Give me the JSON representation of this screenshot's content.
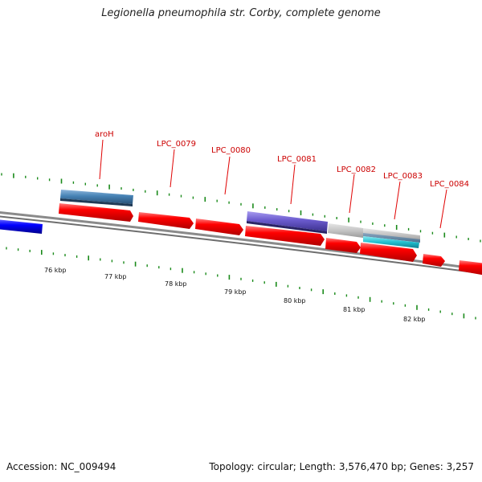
{
  "title": "Legionella pneumophila str. Corby, complete genome",
  "footer": {
    "accession": "Accession: NC_009494",
    "summary": "Topology: circular; Length: 3,576,470 bp; Genes: 3,257"
  },
  "colors": {
    "forward_gene": "#ff0000",
    "backbone": "#777777",
    "ticks": "#1a8a1a",
    "label": "#cc0000",
    "blue_feature": "#0000ff",
    "steelblue_feature": "#4682b4",
    "purple_feature": "#6a5acd",
    "gray_feature": "#c0c0c0",
    "cyan_feature": "#20c0d0"
  },
  "scale_labels": [
    "76 kbp",
    "77 kbp",
    "78 kbp",
    "79 kbp",
    "80 kbp",
    "81 kbp",
    "82 kbp"
  ],
  "gene_labels": [
    "aroH",
    "LPC_0079",
    "LPC_0080",
    "LPC_0081",
    "LPC_0082",
    "LPC_0083",
    "LPC_0084"
  ]
}
